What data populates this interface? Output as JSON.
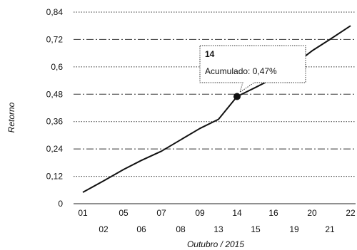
{
  "chart_data": {
    "type": "line",
    "title": "",
    "xlabel": "Outubro / 2015",
    "ylabel": "Retorno",
    "ylim": [
      0,
      0.84
    ],
    "y_ticks": [
      "0",
      "0,12",
      "0,24",
      "0,36",
      "0,48",
      "0,6",
      "0,72",
      "0,84"
    ],
    "grid": true,
    "x_ticks_top": [
      "01",
      "05",
      "07",
      "09",
      "14",
      "16",
      "20",
      "22"
    ],
    "x_ticks_bottom": [
      "02",
      "06",
      "08",
      "13",
      "15",
      "19",
      "21"
    ],
    "categories": [
      "01",
      "02",
      "05",
      "06",
      "07",
      "08",
      "09",
      "13",
      "14",
      "15",
      "16",
      "19",
      "20",
      "21",
      "22"
    ],
    "series": [
      {
        "values": [
          0.05,
          0.1,
          0.15,
          0.19,
          0.23,
          0.28,
          0.33,
          0.37,
          0.47,
          0.51,
          0.55,
          0.61,
          0.67,
          0.72,
          0.78
        ]
      }
    ],
    "highlight": {
      "category": "14",
      "value": 0.47,
      "title": "14",
      "label": "Acumulado: 0,47%"
    }
  }
}
